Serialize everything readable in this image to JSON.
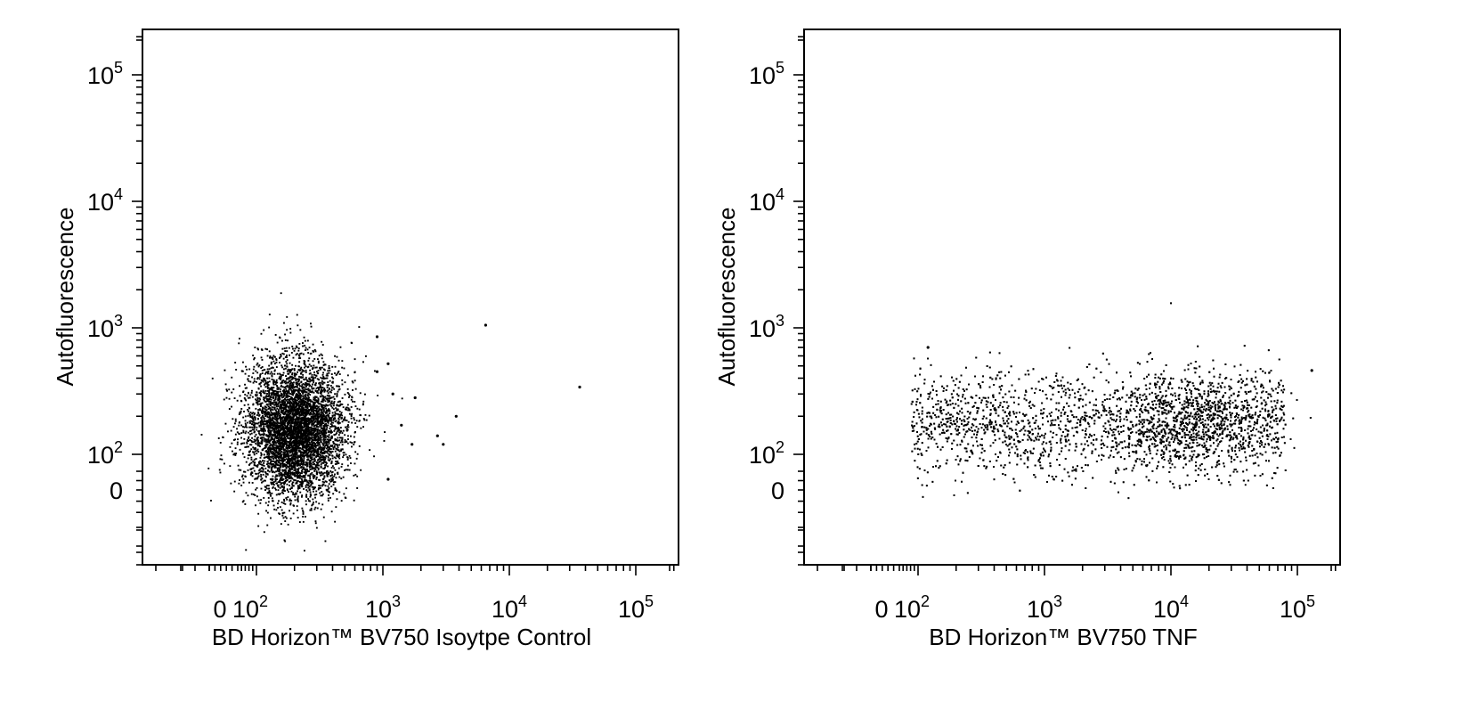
{
  "chart_data": [
    {
      "type": "scatter",
      "x_scale": "biexponential",
      "y_scale": "biexponential",
      "xlabel": "BD Horizon™ BV750 Isoytpe Control",
      "ylabel": "Autofluorescence",
      "x_tick_labels": [
        "0",
        "10",
        "10",
        "10",
        "10"
      ],
      "x_tick_exponents": [
        "",
        "2",
        "3",
        "4",
        "5"
      ],
      "y_tick_labels": [
        "0",
        "10",
        "10",
        "10",
        "10"
      ],
      "y_tick_exponents": [
        "",
        "2",
        "3",
        "4",
        "5"
      ],
      "population": {
        "description": "single dense cluster",
        "x_center": 200,
        "x_range": [
          50,
          500
        ],
        "y_center": 160,
        "y_range": [
          -60,
          600
        ],
        "event_count_approx": 10000
      },
      "outliers": [
        {
          "x": 900,
          "y": 850
        },
        {
          "x": 6500,
          "y": 1050
        },
        {
          "x": 36000,
          "y": 340
        },
        {
          "x": 1100,
          "y": 520
        },
        {
          "x": 900,
          "y": 450
        },
        {
          "x": 1200,
          "y": 300
        },
        {
          "x": 1800,
          "y": 280
        },
        {
          "x": 3800,
          "y": 200
        },
        {
          "x": 2700,
          "y": 140
        },
        {
          "x": 3000,
          "y": 120
        },
        {
          "x": 1400,
          "y": 170
        },
        {
          "x": 1700,
          "y": 120
        },
        {
          "x": 1100,
          "y": 30
        }
      ]
    },
    {
      "type": "scatter",
      "x_scale": "biexponential",
      "y_scale": "biexponential",
      "xlabel": "BD Horizon™ BV750 TNF",
      "ylabel": "Autofluorescence",
      "x_tick_labels": [
        "0",
        "10",
        "10",
        "10",
        "10"
      ],
      "x_tick_exponents": [
        "",
        "2",
        "3",
        "4",
        "5"
      ],
      "y_tick_labels": [
        "0",
        "10",
        "10",
        "10",
        "10"
      ],
      "y_tick_exponents": [
        "",
        "2",
        "3",
        "4",
        "5"
      ],
      "population": {
        "description": "broad horizontal band, denser near 10^4",
        "x_range": [
          60,
          80000
        ],
        "y_center": 180,
        "y_range": [
          -50,
          600
        ],
        "event_count_approx": 10000
      },
      "outliers": [
        {
          "x": 120,
          "y": 700
        },
        {
          "x": 130000,
          "y": 460
        }
      ]
    }
  ]
}
